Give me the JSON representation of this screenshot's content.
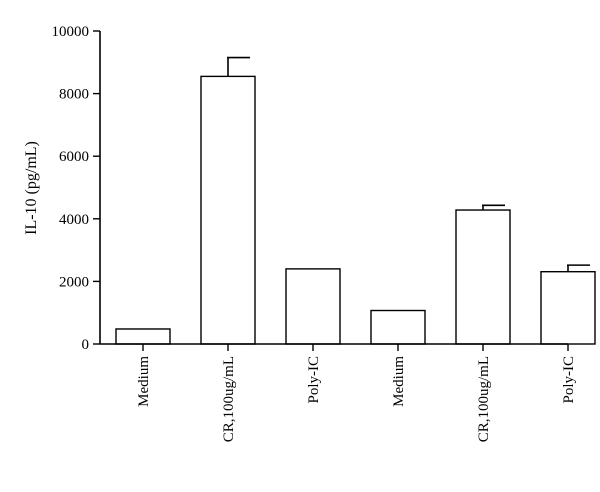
{
  "chart_data": {
    "type": "bar",
    "categories": [
      "Medium",
      "CR,100ug/mL",
      "Poly-IC",
      "Medium",
      "CR,100ug/mL",
      "Poly-IC"
    ],
    "values": [
      480,
      8550,
      2400,
      1070,
      4280,
      2310
    ],
    "errors": [
      0,
      600,
      0,
      0,
      150,
      210
    ],
    "title": "",
    "xlabel": "",
    "ylabel": "IL-10 (pg/mL)",
    "ylim": [
      0,
      10000
    ],
    "yticks": [
      0,
      2000,
      4000,
      6000,
      8000,
      10000
    ],
    "ytick_labels": [
      "0",
      "2000",
      "4000",
      "6000",
      "8000",
      "10000"
    ],
    "grid": false,
    "legend": "none",
    "colors": {
      "bar_fill": "#ffffff",
      "bar_stroke": "#000000"
    }
  }
}
